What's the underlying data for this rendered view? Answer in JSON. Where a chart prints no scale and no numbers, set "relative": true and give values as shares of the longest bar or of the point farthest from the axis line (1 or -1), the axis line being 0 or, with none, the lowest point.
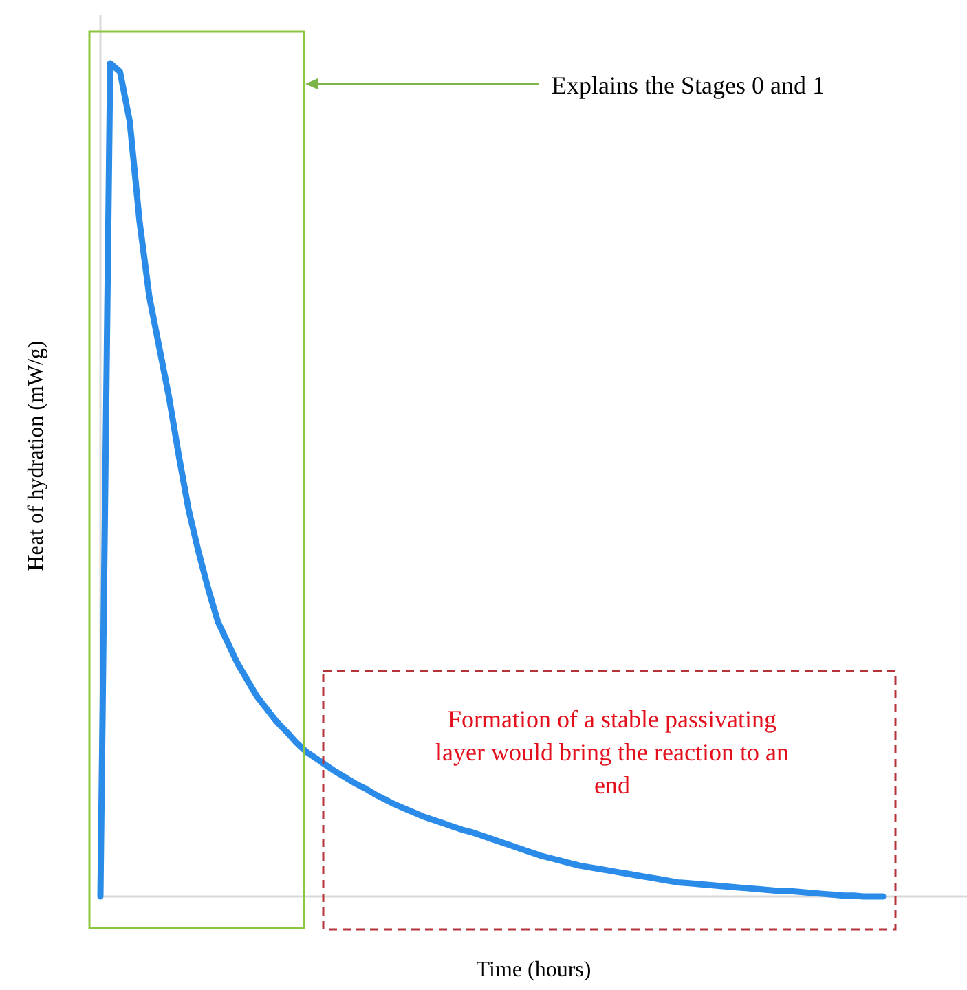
{
  "chart_data": {
    "type": "line",
    "relative": true,
    "xlabel": "Time (hours)",
    "ylabel": "Heat of hydration (mW/g)",
    "categories": [
      null,
      null,
      null,
      null,
      null,
      null,
      null,
      null,
      null,
      null,
      null,
      null,
      null,
      null,
      null,
      null,
      null,
      null,
      null,
      null,
      null,
      null,
      null,
      null,
      null,
      null,
      null,
      null,
      null,
      null,
      null,
      null,
      null,
      null,
      null,
      null,
      null,
      null,
      null,
      null,
      null,
      null,
      null,
      null,
      null,
      null,
      null,
      null,
      null,
      null,
      null,
      null,
      null,
      null,
      null,
      null,
      null,
      null,
      null,
      null,
      null,
      null,
      null,
      null,
      null,
      null,
      null,
      null,
      null,
      null,
      null,
      null,
      null,
      null,
      null,
      null,
      null,
      null,
      null,
      null,
      null
    ],
    "series": [
      {
        "color": "#2a8be8",
        "values": [
          0,
          1,
          0.99,
          0.93,
          0.81,
          0.72,
          0.66,
          0.6,
          0.53,
          0.465,
          0.415,
          0.37,
          0.33,
          0.305,
          0.28,
          0.26,
          0.24,
          0.225,
          0.21,
          0.198,
          0.185,
          0.174,
          0.166,
          0.158,
          0.15,
          0.143,
          0.136,
          0.13,
          0.123,
          0.117,
          0.111,
          0.106,
          0.101,
          0.096,
          0.092,
          0.088,
          0.084,
          0.08,
          0.077,
          0.073,
          0.069,
          0.065,
          0.061,
          0.057,
          0.053,
          0.049,
          0.046,
          0.043,
          0.04,
          0.037,
          0.035,
          0.033,
          0.031,
          0.029,
          0.027,
          0.025,
          0.023,
          0.021,
          0.019,
          0.017,
          0.016,
          0.015,
          0.014,
          0.013,
          0.012,
          0.011,
          0.01,
          0.009,
          0.008,
          0.007,
          0.007,
          0.006,
          0.005,
          0.004,
          0.003,
          0.002,
          0.001,
          0.001,
          0,
          0,
          0
        ]
      }
    ],
    "line_style": "solid",
    "marker": "none",
    "annotations": [
      "Explains the Stages 0 and 1",
      "Formation of a stable passivating layer would bring the reaction to an end"
    ]
  }
}
